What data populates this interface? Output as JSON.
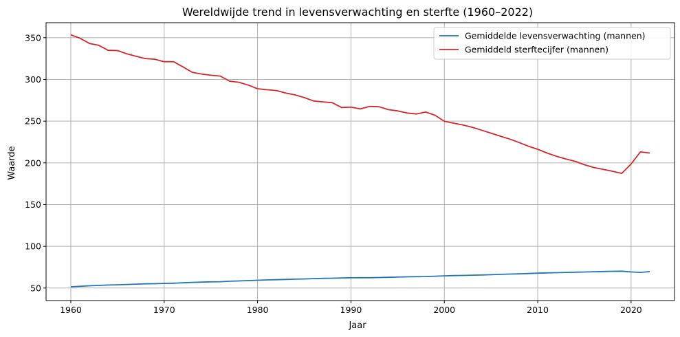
{
  "chart_data": {
    "type": "line",
    "title": "Wereldwijde trend in levensverwachting en sterfte (1960–2022)",
    "xlabel": "Jaar",
    "ylabel": "Waarde",
    "xlim": [
      1957.35,
      2024.65
    ],
    "ylim": [
      35,
      368
    ],
    "xticks": [
      1960,
      1970,
      1980,
      1990,
      2000,
      2010,
      2020
    ],
    "yticks": [
      50,
      100,
      150,
      200,
      250,
      300,
      350
    ],
    "grid": true,
    "legend_position": "top-right",
    "x": [
      1960,
      1961,
      1962,
      1963,
      1964,
      1965,
      1966,
      1967,
      1968,
      1969,
      1970,
      1971,
      1972,
      1973,
      1974,
      1975,
      1976,
      1977,
      1978,
      1979,
      1980,
      1981,
      1982,
      1983,
      1984,
      1985,
      1986,
      1987,
      1988,
      1989,
      1990,
      1991,
      1992,
      1993,
      1994,
      1995,
      1996,
      1997,
      1998,
      1999,
      2000,
      2001,
      2002,
      2003,
      2004,
      2005,
      2006,
      2007,
      2008,
      2009,
      2010,
      2011,
      2012,
      2013,
      2014,
      2015,
      2016,
      2017,
      2018,
      2019,
      2020,
      2021,
      2022
    ],
    "series": [
      {
        "name": "Gemiddelde levensverwachting (mannen)",
        "color": "#1f77b4",
        "values": [
          51.5,
          52.1,
          52.7,
          53.1,
          53.6,
          53.9,
          54.3,
          54.7,
          55.0,
          55.2,
          55.5,
          55.8,
          56.3,
          56.8,
          57.1,
          57.4,
          57.6,
          58.2,
          58.5,
          58.9,
          59.3,
          59.7,
          60.0,
          60.3,
          60.6,
          60.9,
          61.3,
          61.6,
          61.8,
          62.1,
          62.3,
          62.4,
          62.4,
          62.6,
          62.9,
          63.1,
          63.4,
          63.6,
          63.8,
          64.2,
          64.6,
          64.9,
          65.1,
          65.4,
          65.7,
          66.0,
          66.4,
          66.7,
          67.0,
          67.4,
          67.8,
          68.1,
          68.4,
          68.7,
          69.0,
          69.2,
          69.5,
          69.8,
          70.0,
          70.2,
          69.3,
          68.7,
          69.7
        ]
      },
      {
        "name": "Gemiddeld sterftecijfer (mannen)",
        "color": "#d62728",
        "values": [
          353.5,
          349.3,
          343.1,
          340.9,
          334.9,
          334.6,
          330.7,
          327.7,
          325.0,
          324.2,
          321.3,
          321.3,
          315.1,
          308.6,
          306.5,
          305.0,
          304.0,
          297.9,
          296.6,
          293.2,
          288.9,
          287.6,
          286.7,
          283.8,
          281.5,
          278.2,
          274.2,
          273.1,
          272.1,
          266.4,
          266.8,
          264.6,
          267.6,
          267.3,
          263.8,
          262.3,
          259.8,
          258.6,
          260.9,
          257.1,
          249.9,
          247.6,
          245.4,
          242.6,
          239.2,
          235.6,
          232.0,
          228.5,
          224.4,
          220.0,
          216.3,
          211.8,
          207.9,
          204.7,
          201.9,
          197.8,
          194.5,
          192.3,
          190.0,
          187.4,
          198.6,
          213.1,
          211.8
        ]
      }
    ]
  }
}
